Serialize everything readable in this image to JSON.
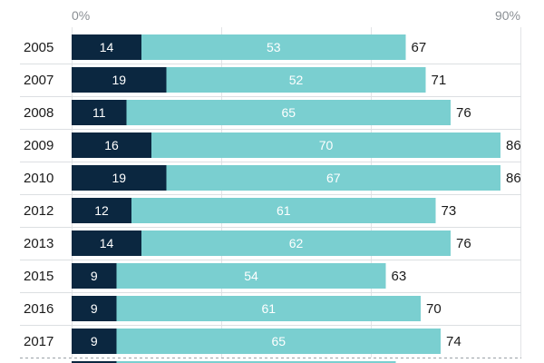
{
  "chart_data": {
    "type": "bar",
    "orientation": "horizontal",
    "stacked": true,
    "categories": [
      "2005",
      "2007",
      "2008",
      "2009",
      "2010",
      "2012",
      "2013",
      "2015",
      "2016",
      "2017"
    ],
    "series": [
      {
        "values": [
          14,
          19,
          11,
          16,
          19,
          12,
          14,
          9,
          9,
          9
        ],
        "color": "#0b2740"
      },
      {
        "values": [
          53,
          52,
          65,
          70,
          67,
          61,
          62,
          54,
          61,
          65
        ],
        "color": "#7acfd0"
      }
    ],
    "totals": [
      67,
      71,
      76,
      86,
      86,
      73,
      76,
      63,
      70,
      74
    ],
    "xlim": [
      0,
      90
    ],
    "x_tick_labels": [
      "0%",
      "90%"
    ],
    "gridlines": true,
    "legend": "none"
  }
}
